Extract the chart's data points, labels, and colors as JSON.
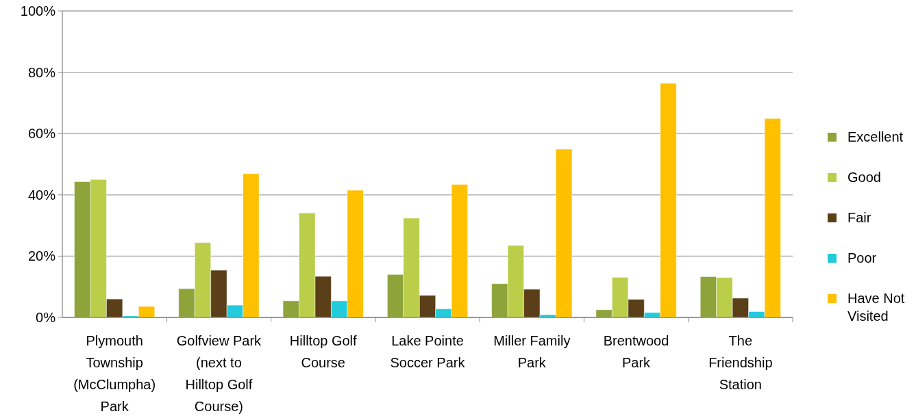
{
  "chart_data": {
    "type": "bar",
    "categories": [
      "Plymouth Township (McClumpha) Park",
      "Golfview Park (next to Hilltop Golf Course)",
      "Hilltop Golf Course",
      "Lake Pointe Soccer Park",
      "Miller Family Park",
      "Brentwood Park",
      "The Friendship Station"
    ],
    "series": [
      {
        "name": "Excellent",
        "color": "#8ea33a",
        "values": [
          44.3,
          9.4,
          5.4,
          14.0,
          11.0,
          2.5,
          13.3
        ]
      },
      {
        "name": "Good",
        "color": "#bace4a",
        "values": [
          45.0,
          24.4,
          34.1,
          32.4,
          23.5,
          13.1,
          13.0
        ]
      },
      {
        "name": "Fair",
        "color": "#5a3f18",
        "values": [
          6.0,
          15.4,
          13.4,
          7.2,
          9.2,
          5.9,
          6.3
        ]
      },
      {
        "name": "Poor",
        "color": "#22cbdc",
        "values": [
          0.5,
          4.0,
          5.4,
          2.8,
          0.9,
          1.6,
          1.9
        ]
      },
      {
        "name": "Have Not Visited",
        "color": "#ffc000",
        "values": [
          3.6,
          46.9,
          41.5,
          43.4,
          54.9,
          76.4,
          64.9
        ]
      }
    ],
    "ylim": [
      0,
      100
    ],
    "yticks": [
      {
        "value": 0,
        "label": "0%"
      },
      {
        "value": 20,
        "label": "20%"
      },
      {
        "value": 40,
        "label": "40%"
      },
      {
        "value": 60,
        "label": "60%"
      },
      {
        "value": 80,
        "label": "80%"
      },
      {
        "value": 100,
        "label": "100%"
      }
    ],
    "grid": "y",
    "legend": "right"
  }
}
